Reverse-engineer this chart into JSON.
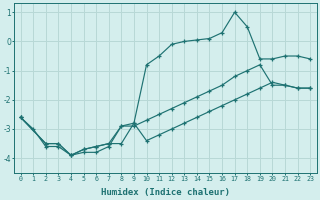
{
  "xlabel": "Humidex (Indice chaleur)",
  "bg_color": "#d4eeed",
  "line_color": "#1e7272",
  "grid_color": "#b8d8d6",
  "xlim": [
    -0.5,
    23.5
  ],
  "ylim": [
    -4.5,
    1.3
  ],
  "xticks": [
    0,
    1,
    2,
    3,
    4,
    5,
    6,
    7,
    8,
    9,
    10,
    11,
    12,
    13,
    14,
    15,
    16,
    17,
    18,
    19,
    20,
    21,
    22,
    23
  ],
  "yticks": [
    -4,
    -3,
    -2,
    -1,
    0,
    1
  ],
  "line1_x": [
    0,
    1,
    2,
    3,
    4,
    5,
    6,
    7,
    8,
    9,
    10,
    11,
    12,
    13,
    14,
    15,
    16,
    17,
    18,
    19,
    20,
    21,
    22,
    23
  ],
  "line1_y": [
    -2.6,
    -3.0,
    -3.6,
    -3.6,
    -3.9,
    -3.8,
    -3.8,
    -3.6,
    -2.9,
    -2.8,
    -0.8,
    -0.5,
    -0.1,
    0.0,
    0.05,
    0.1,
    0.3,
    1.0,
    0.5,
    -0.6,
    -0.6,
    -0.5,
    -0.5,
    -0.6
  ],
  "line2_x": [
    0,
    2,
    3,
    4,
    5,
    6,
    7,
    8,
    9,
    10,
    11,
    12,
    13,
    14,
    15,
    16,
    17,
    18,
    19,
    20,
    21,
    22,
    23
  ],
  "line2_y": [
    -2.6,
    -3.5,
    -3.5,
    -3.9,
    -3.7,
    -3.6,
    -3.5,
    -3.5,
    -2.8,
    -3.4,
    -3.2,
    -3.0,
    -2.8,
    -2.6,
    -2.4,
    -2.2,
    -2.0,
    -1.8,
    -1.6,
    -1.4,
    -1.5,
    -1.6,
    -1.6
  ],
  "line3_x": [
    0,
    2,
    3,
    4,
    5,
    6,
    7,
    8,
    9,
    10,
    11,
    12,
    13,
    14,
    15,
    16,
    17,
    18,
    19,
    20,
    21,
    22,
    23
  ],
  "line3_y": [
    -2.6,
    -3.5,
    -3.5,
    -3.9,
    -3.7,
    -3.6,
    -3.5,
    -2.9,
    -2.9,
    -2.7,
    -2.5,
    -2.3,
    -2.1,
    -1.9,
    -1.7,
    -1.5,
    -1.2,
    -1.0,
    -0.8,
    -1.5,
    -1.5,
    -1.6,
    -1.6
  ]
}
